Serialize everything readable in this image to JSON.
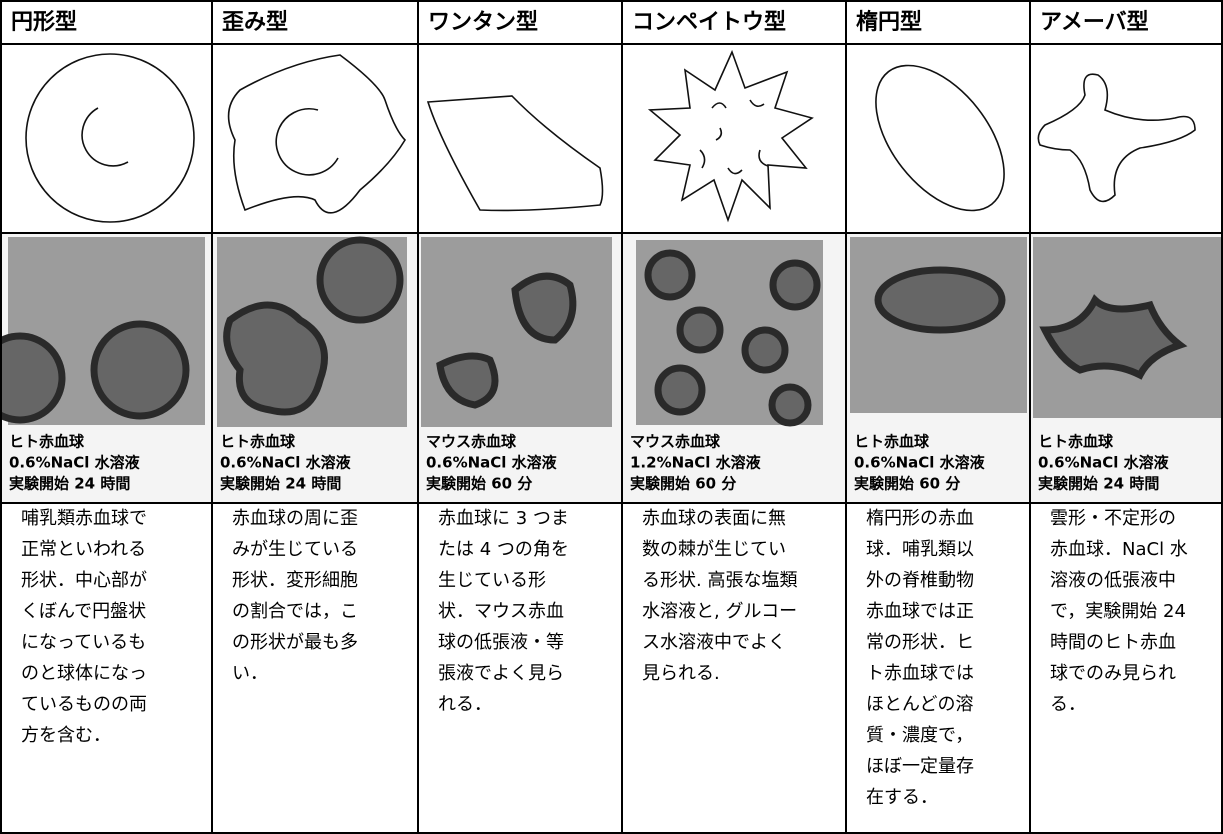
{
  "table": {
    "headers": [
      "円形型",
      "歪み型",
      "ワンタン型",
      "コンペイトウ型",
      "楕円型",
      "アメーバ型"
    ],
    "captions": [
      [
        "ヒト赤血球",
        "0.6%NaCl 水溶液",
        "実験開始 24 時間"
      ],
      [
        "ヒト赤血球",
        "0.6%NaCl 水溶液",
        "実験開始 24 時間"
      ],
      [
        "マウス赤血球",
        "0.6%NaCl 水溶液",
        "実験開始 60 分"
      ],
      [
        "マウス赤血球",
        "1.2%NaCl 水溶液",
        "実験開始 60 分"
      ],
      [
        "ヒト赤血球",
        "0.6%NaCl 水溶液",
        "実験開始 60 分"
      ],
      [
        "ヒト赤血球",
        "0.6%NaCl 水溶液",
        "実験開始 24 時間"
      ]
    ],
    "descriptions": [
      [
        "哺乳類赤血球で",
        "正常といわれる",
        "形状．中心部が",
        "くぼんで円盤状",
        "になっているも",
        "のと球体になっ",
        "ているものの両",
        "方を含む．"
      ],
      [
        "赤血球の周に歪",
        "みが生じている",
        "形状．変形細胞",
        "の割合では，こ",
        "の形状が最も多",
        "い．"
      ],
      [
        "赤血球に 3 つま",
        "たは 4 つの角を",
        "生じている形",
        "状．マウス赤血",
        "球の低張液・等",
        "張液でよく見ら",
        "れる．"
      ],
      [
        "赤血球の表面に無",
        "数の棘が生じてい",
        "る形状. 高張な塩類",
        "水溶液と, グルコー",
        "ス水溶液中でよく",
        "見られる."
      ],
      [
        "楕円形の赤血",
        "球．哺乳類以",
        "外の脊椎動物",
        "赤血球では正",
        "常の形状．ヒ",
        "ト赤血球では",
        "ほとんどの溶",
        "質・濃度で，",
        "ほぼ一定量存",
        "在する．"
      ],
      [
        "雲形・不定形の",
        "赤血球．NaCl 水",
        "溶液の低張液中",
        "で，実験開始 24",
        "時間のヒト赤血",
        "球でのみ見られ",
        "る．"
      ]
    ]
  }
}
